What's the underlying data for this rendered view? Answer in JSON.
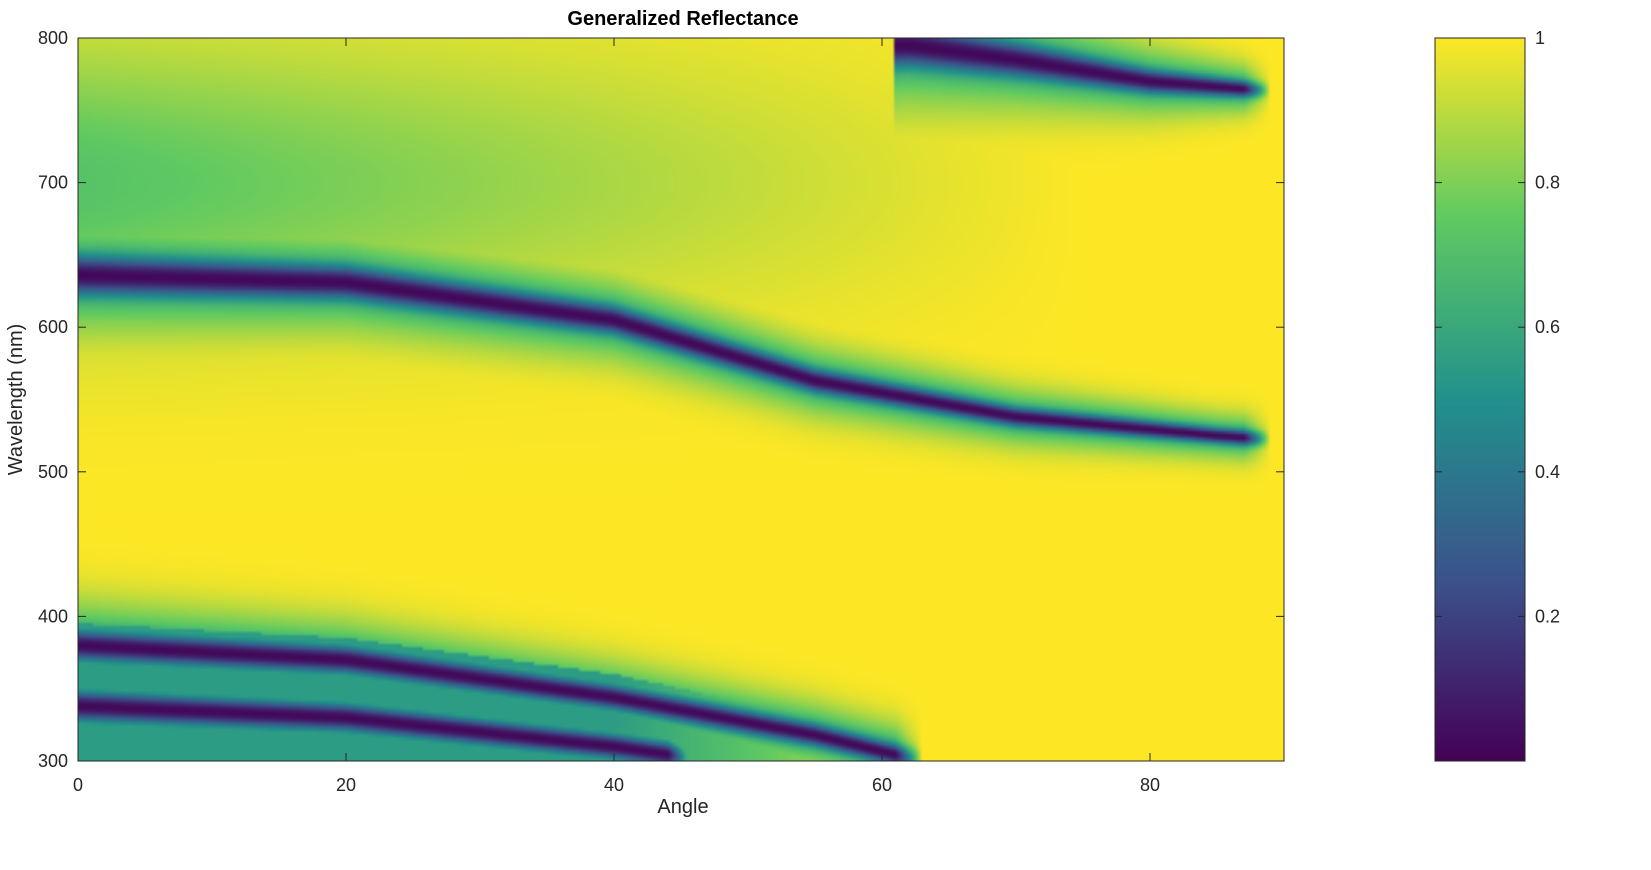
{
  "chart_data": {
    "type": "heatmap",
    "title": "Generalized Reflectance",
    "xlabel": "Angle",
    "ylabel": "Wavelength (nm)",
    "xlim": [
      0,
      90
    ],
    "ylim": [
      300,
      800
    ],
    "clim": [
      0,
      1
    ],
    "x_ticks": [
      0,
      20,
      40,
      60,
      80
    ],
    "y_ticks": [
      300,
      400,
      500,
      600,
      700,
      800
    ],
    "colorbar_ticks": [
      0.2,
      0.4,
      0.6,
      0.8,
      1
    ],
    "x_tick_labels": [
      "0",
      "20",
      "40",
      "60",
      "80"
    ],
    "y_tick_labels": [
      "300",
      "400",
      "500",
      "600",
      "700",
      "800"
    ],
    "colorbar_tick_labels": [
      "0.2",
      "0.4",
      "0.6",
      "0.8",
      "1"
    ],
    "colormap": "viridis",
    "colormap_stops": [
      "#440154",
      "#3b528b",
      "#21918c",
      "#5ec962",
      "#fde725"
    ],
    "grid": false,
    "colorbar_position": "right",
    "dark_bands": [
      {
        "description_points_angle": [
          0,
          20,
          40,
          55,
          70,
          85,
          88
        ],
        "wavelength_nm": [
          636,
          631,
          605,
          563,
          538,
          525,
          523
        ]
      },
      {
        "description_points_angle": [
          0,
          20,
          40,
          55,
          62
        ],
        "wavelength_nm": [
          380,
          370,
          344,
          318,
          302
        ]
      },
      {
        "description_points_angle": [
          0,
          20,
          40,
          45
        ],
        "wavelength_nm": [
          338,
          330,
          310,
          303
        ]
      },
      {
        "description_points_angle": [
          62,
          70,
          80,
          88
        ],
        "wavelength_nm": [
          795,
          785,
          770,
          764
        ]
      }
    ],
    "values_grid_description": "reflectance near 1 (yellow) in 420-590 nm and above ~620 nm at high angles; dips to ~0 along dark bands; ~0.35-0.75 (teal/green) near 700-800 nm at low angles and 300-360 nm at low angles"
  }
}
